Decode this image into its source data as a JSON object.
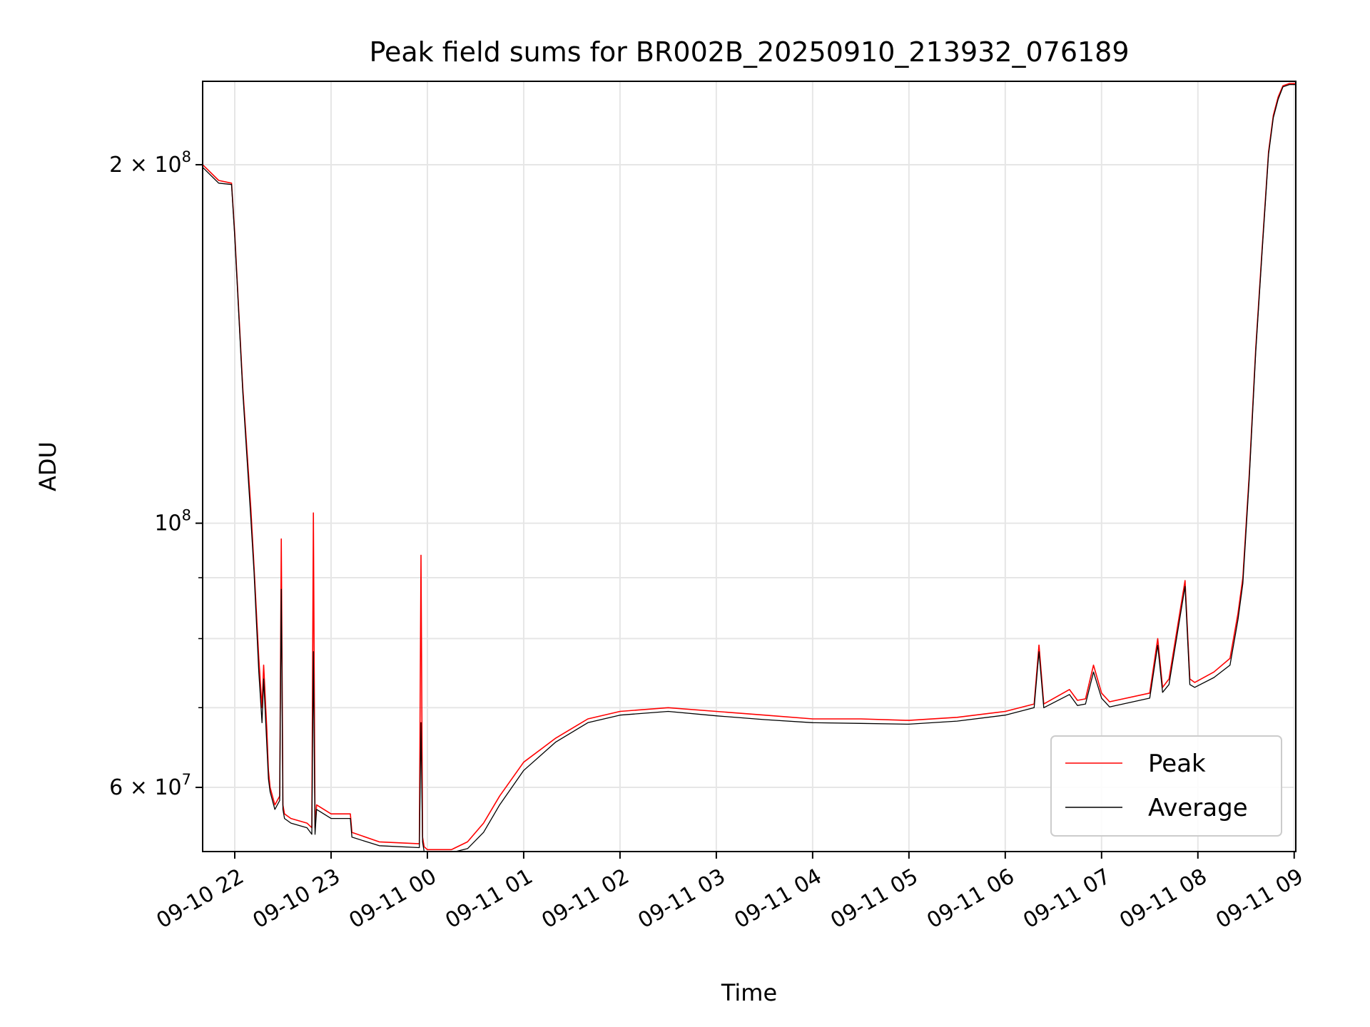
{
  "chart_data": {
    "type": "line",
    "title": "Peak field sums for BR002B_20250910_213932_076189",
    "xlabel": "Time",
    "ylabel": "ADU",
    "xlim": [
      "2025-09-10 21:40",
      "2025-09-11 09:01"
    ],
    "ylim": [
      53000000,
      235000000
    ],
    "yscale": "log",
    "grid": true,
    "legend_position": "lower-right",
    "x_ticks": [
      "09-10 22",
      "09-10 23",
      "09-11 00",
      "09-11 01",
      "09-11 02",
      "09-11 03",
      "09-11 04",
      "09-11 05",
      "09-11 06",
      "09-11 07",
      "09-11 08",
      "09-11 09"
    ],
    "x_tick_times": [
      "2025-09-10 22:00",
      "2025-09-10 23:00",
      "2025-09-11 00:00",
      "2025-09-11 01:00",
      "2025-09-11 02:00",
      "2025-09-11 03:00",
      "2025-09-11 04:00",
      "2025-09-11 05:00",
      "2025-09-11 06:00",
      "2025-09-11 07:00",
      "2025-09-11 08:00",
      "2025-09-11 09:00"
    ],
    "y_ticks": [
      {
        "value": 200000000,
        "mantissa": "2",
        "exponent": "8"
      },
      {
        "value": 100000000,
        "mantissa": "",
        "exponent": "8"
      },
      {
        "value": 60000000,
        "mantissa": "6",
        "exponent": "7"
      }
    ],
    "y_minor_ticks": [
      70000000,
      80000000,
      90000000
    ],
    "series": [
      {
        "name": "Peak",
        "color": "#ff0000",
        "x": [
          "2025-09-10 21:40",
          "2025-09-10 21:50",
          "2025-09-10 21:58",
          "2025-09-10 22:00",
          "2025-09-10 22:05",
          "2025-09-10 22:10",
          "2025-09-10 22:12",
          "2025-09-10 22:15",
          "2025-09-10 22:17",
          "2025-09-10 22:18",
          "2025-09-10 22:20",
          "2025-09-10 22:21",
          "2025-09-10 22:22",
          "2025-09-10 22:25",
          "2025-09-10 22:28",
          "2025-09-10 22:29",
          "2025-09-10 22:30",
          "2025-09-10 22:31",
          "2025-09-10 22:35",
          "2025-09-10 22:45",
          "2025-09-10 22:48",
          "2025-09-10 22:49",
          "2025-09-10 22:50",
          "2025-09-10 22:51",
          "2025-09-10 23:00",
          "2025-09-10 23:12",
          "2025-09-10 23:13",
          "2025-09-10 23:30",
          "2025-09-10 23:55",
          "2025-09-10 23:56",
          "2025-09-10 23:57",
          "2025-09-10 23:58",
          "2025-09-11 00:00",
          "2025-09-11 00:15",
          "2025-09-11 00:25",
          "2025-09-11 00:35",
          "2025-09-11 00:45",
          "2025-09-11 01:00",
          "2025-09-11 01:20",
          "2025-09-11 01:40",
          "2025-09-11 02:00",
          "2025-09-11 02:30",
          "2025-09-11 03:00",
          "2025-09-11 03:30",
          "2025-09-11 04:00",
          "2025-09-11 04:30",
          "2025-09-11 05:00",
          "2025-09-11 05:30",
          "2025-09-11 06:00",
          "2025-09-11 06:18",
          "2025-09-11 06:21",
          "2025-09-11 06:24",
          "2025-09-11 06:40",
          "2025-09-11 06:45",
          "2025-09-11 06:50",
          "2025-09-11 06:55",
          "2025-09-11 07:00",
          "2025-09-11 07:05",
          "2025-09-11 07:30",
          "2025-09-11 07:35",
          "2025-09-11 07:38",
          "2025-09-11 07:42",
          "2025-09-11 07:52",
          "2025-09-11 07:55",
          "2025-09-11 07:58",
          "2025-09-11 08:10",
          "2025-09-11 08:20",
          "2025-09-11 08:25",
          "2025-09-11 08:28",
          "2025-09-11 08:32",
          "2025-09-11 08:36",
          "2025-09-11 08:40",
          "2025-09-11 08:44",
          "2025-09-11 08:47",
          "2025-09-11 08:50",
          "2025-09-11 08:53",
          "2025-09-11 08:57",
          "2025-09-11 09:01"
        ],
        "y": [
          200000000,
          194000000,
          193000000,
          175000000,
          130000000,
          103000000,
          92000000,
          77000000,
          70000000,
          76000000,
          67000000,
          62000000,
          60000000,
          58000000,
          59000000,
          97000000,
          58000000,
          57000000,
          56500000,
          56000000,
          55500000,
          102000000,
          55500000,
          58000000,
          57000000,
          57000000,
          55000000,
          54000000,
          53800000,
          94000000,
          54500000,
          53500000,
          53200000,
          53200000,
          54000000,
          56000000,
          59000000,
          63000000,
          66000000,
          68500000,
          69500000,
          70000000,
          69500000,
          69000000,
          68500000,
          68500000,
          68300000,
          68700000,
          69500000,
          70500000,
          79000000,
          70500000,
          72500000,
          71000000,
          71200000,
          76000000,
          72000000,
          70800000,
          72000000,
          80000000,
          72800000,
          74000000,
          89500000,
          74000000,
          73500000,
          75000000,
          77000000,
          84000000,
          90000000,
          110000000,
          140000000,
          170000000,
          205000000,
          220000000,
          228000000,
          233000000,
          234000000,
          234000000
        ]
      },
      {
        "name": "Average",
        "color": "#000000",
        "x": [
          "2025-09-10 21:40",
          "2025-09-10 21:50",
          "2025-09-10 21:58",
          "2025-09-10 22:00",
          "2025-09-10 22:05",
          "2025-09-10 22:10",
          "2025-09-10 22:12",
          "2025-09-10 22:15",
          "2025-09-10 22:17",
          "2025-09-10 22:18",
          "2025-09-10 22:20",
          "2025-09-10 22:21",
          "2025-09-10 22:22",
          "2025-09-10 22:25",
          "2025-09-10 22:28",
          "2025-09-10 22:29",
          "2025-09-10 22:30",
          "2025-09-10 22:31",
          "2025-09-10 22:35",
          "2025-09-10 22:45",
          "2025-09-10 22:48",
          "2025-09-10 22:49",
          "2025-09-10 22:50",
          "2025-09-10 22:51",
          "2025-09-10 23:00",
          "2025-09-10 23:12",
          "2025-09-10 23:13",
          "2025-09-10 23:30",
          "2025-09-10 23:55",
          "2025-09-10 23:56",
          "2025-09-10 23:57",
          "2025-09-10 23:58",
          "2025-09-11 00:00",
          "2025-09-11 00:15",
          "2025-09-11 00:25",
          "2025-09-11 00:35",
          "2025-09-11 00:45",
          "2025-09-11 01:00",
          "2025-09-11 01:20",
          "2025-09-11 01:40",
          "2025-09-11 02:00",
          "2025-09-11 02:30",
          "2025-09-11 03:00",
          "2025-09-11 03:30",
          "2025-09-11 04:00",
          "2025-09-11 04:30",
          "2025-09-11 05:00",
          "2025-09-11 05:30",
          "2025-09-11 06:00",
          "2025-09-11 06:18",
          "2025-09-11 06:21",
          "2025-09-11 06:24",
          "2025-09-11 06:40",
          "2025-09-11 06:45",
          "2025-09-11 06:50",
          "2025-09-11 06:55",
          "2025-09-11 07:00",
          "2025-09-11 07:05",
          "2025-09-11 07:30",
          "2025-09-11 07:35",
          "2025-09-11 07:38",
          "2025-09-11 07:42",
          "2025-09-11 07:52",
          "2025-09-11 07:55",
          "2025-09-11 07:58",
          "2025-09-11 08:10",
          "2025-09-11 08:20",
          "2025-09-11 08:25",
          "2025-09-11 08:28",
          "2025-09-11 08:32",
          "2025-09-11 08:36",
          "2025-09-11 08:40",
          "2025-09-11 08:44",
          "2025-09-11 08:47",
          "2025-09-11 08:50",
          "2025-09-11 08:53",
          "2025-09-11 08:57",
          "2025-09-11 09:01"
        ],
        "y": [
          199000000,
          193000000,
          192500000,
          174000000,
          129000000,
          101000000,
          91000000,
          75000000,
          68000000,
          74000000,
          65000000,
          61000000,
          59500000,
          57500000,
          58500000,
          88000000,
          57500000,
          56500000,
          56000000,
          55500000,
          54800000,
          78000000,
          54800000,
          57500000,
          56500000,
          56500000,
          54500000,
          53600000,
          53400000,
          68000000,
          54000000,
          53000000,
          52900000,
          52900000,
          53300000,
          55000000,
          58000000,
          62000000,
          65500000,
          68000000,
          69000000,
          69500000,
          68900000,
          68400000,
          68000000,
          67900000,
          67800000,
          68200000,
          69000000,
          70000000,
          78000000,
          70000000,
          71800000,
          70300000,
          70500000,
          75000000,
          71300000,
          70100000,
          71300000,
          79000000,
          72100000,
          73200000,
          88500000,
          73200000,
          72800000,
          74200000,
          76000000,
          83000000,
          89000000,
          109000000,
          139000000,
          169000000,
          204000000,
          219000000,
          227000000,
          232500000,
          233500000,
          233500000
        ]
      }
    ]
  }
}
